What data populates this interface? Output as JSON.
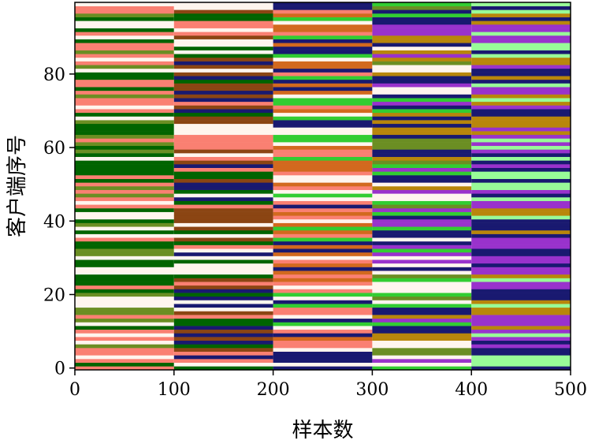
{
  "chart_data": {
    "type": "heatmap",
    "title": "",
    "xlabel": "样本数",
    "ylabel": "客户端序号",
    "xlim": [
      0,
      500
    ],
    "ylim": [
      -0.5,
      99.5
    ],
    "x_ticks": [
      "0",
      "100",
      "200",
      "300",
      "400",
      "500"
    ],
    "y_ticks": [
      "0",
      "20",
      "40",
      "60",
      "80"
    ],
    "block_size": 100,
    "num_clients": 100,
    "blocks": [
      {
        "x_start": 0,
        "x_end": 100,
        "palette": [
          "#6b8e23",
          "#006400",
          "#fa8072",
          "#fff5ee"
        ]
      },
      {
        "x_start": 100,
        "x_end": 200,
        "palette": [
          "#fa8072",
          "#8b4513",
          "#006400",
          "#fff5ee",
          "#191970"
        ]
      },
      {
        "x_start": 200,
        "x_end": 300,
        "palette": [
          "#32cd32",
          "#fff5ee",
          "#191970",
          "#d2691e",
          "#fa8072"
        ]
      },
      {
        "x_start": 300,
        "x_end": 400,
        "palette": [
          "#191970",
          "#b8860b",
          "#9932cc",
          "#6b8e23",
          "#fff5ee",
          "#32cd32"
        ]
      },
      {
        "x_start": 400,
        "x_end": 500,
        "palette": [
          "#98fb98",
          "#9932cc",
          "#b8860b",
          "#191970"
        ]
      }
    ],
    "grid": false,
    "legend": "none"
  }
}
